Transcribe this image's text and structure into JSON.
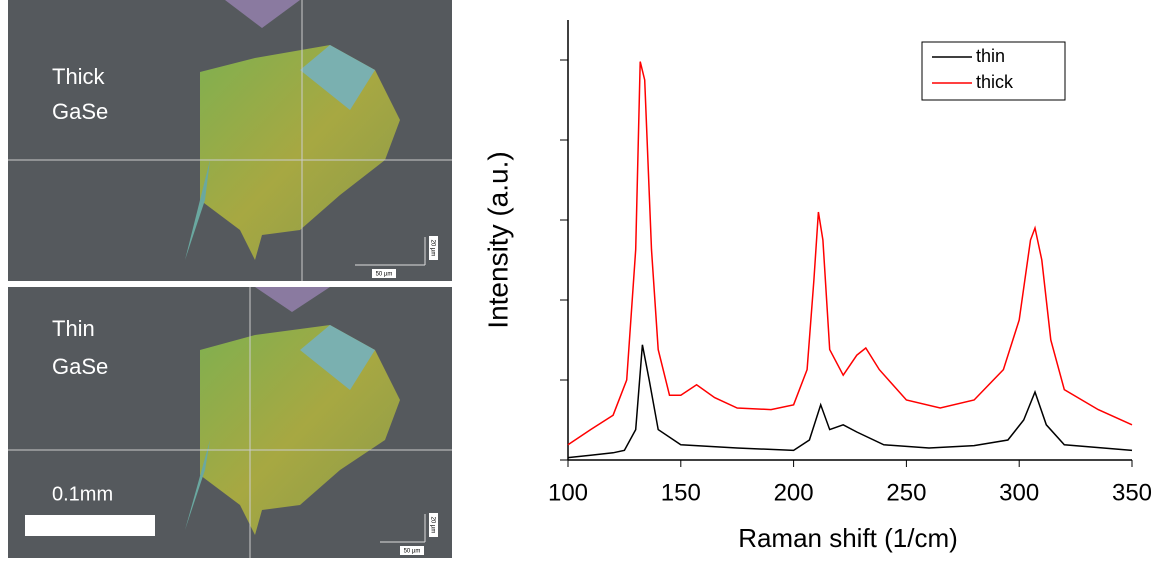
{
  "images": [
    {
      "label": [
        "Thick",
        "GaSe"
      ],
      "scale_x": "50 µm",
      "scale_y": "20 µm"
    },
    {
      "label": [
        "Thin",
        "GaSe"
      ],
      "scale_x": "50 µm",
      "scale_y": "20 µm",
      "scale_bar": "0.1mm"
    }
  ],
  "chart_data": {
    "type": "line",
    "xlabel": "Raman shift (1/cm)",
    "ylabel": "Intensity (a.u.)",
    "xlim": [
      100,
      350
    ],
    "xticks": [
      100,
      150,
      200,
      250,
      300,
      350
    ],
    "ylim": [
      0,
      5.5
    ],
    "yticks": [
      0,
      1,
      2,
      3,
      4,
      5
    ],
    "legend": "upper right",
    "series": [
      {
        "name": "thin",
        "color": "#000000",
        "x": [
          100,
          110,
          120,
          125,
          130,
          133,
          136,
          140,
          150,
          175,
          200,
          207,
          212,
          216,
          222,
          228,
          240,
          260,
          280,
          295,
          302,
          307,
          312,
          320,
          350
        ],
        "values": [
          0.03,
          0.06,
          0.09,
          0.12,
          0.38,
          1.44,
          1.0,
          0.38,
          0.19,
          0.15,
          0.12,
          0.25,
          0.69,
          0.38,
          0.44,
          0.35,
          0.19,
          0.15,
          0.18,
          0.25,
          0.5,
          0.85,
          0.44,
          0.19,
          0.12
        ]
      },
      {
        "name": "thick",
        "color": "#ff0000",
        "x": [
          100,
          110,
          120,
          126,
          130,
          132,
          134,
          137,
          140,
          145,
          150,
          157,
          165,
          175,
          190,
          200,
          206,
          209,
          211,
          213,
          216,
          222,
          228,
          232,
          238,
          250,
          265,
          280,
          293,
          300,
          305,
          307,
          310,
          314,
          320,
          335,
          350
        ],
        "values": [
          0.19,
          0.38,
          0.56,
          1.0,
          2.63,
          4.98,
          4.75,
          2.63,
          1.38,
          0.81,
          0.81,
          0.94,
          0.78,
          0.65,
          0.63,
          0.69,
          1.13,
          2.25,
          3.1,
          2.75,
          1.38,
          1.06,
          1.31,
          1.4,
          1.13,
          0.75,
          0.65,
          0.75,
          1.13,
          1.75,
          2.75,
          2.9,
          2.5,
          1.5,
          0.88,
          0.63,
          0.44
        ]
      }
    ]
  }
}
